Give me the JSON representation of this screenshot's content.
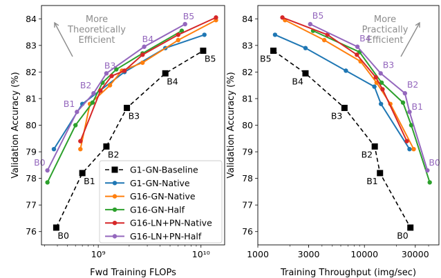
{
  "chart_data": [
    {
      "type": "line",
      "xscale": "log",
      "xlabel": "Fwd Training FLOPs",
      "ylabel": "Validation Accuracy (%)",
      "xlim": [
        280000000,
        17000000000
      ],
      "ylim": [
        75.5,
        84.5
      ],
      "x_ticks": [
        {
          "v": 1000000000,
          "label": "10⁹"
        },
        {
          "v": 10000000000,
          "label": "10¹⁰"
        }
      ],
      "y_ticks": [
        76,
        77,
        78,
        79,
        80,
        81,
        82,
        83,
        84
      ],
      "annotation": {
        "lines": [
          "More",
          "Theoretically",
          "Efficient"
        ],
        "arrow": "up-left"
      },
      "legend": {
        "position": "bottom-right",
        "entries": [
          "G1-GN-Baseline",
          "G1-GN-Native",
          "G16-GN-Native",
          "G16-GN-Half",
          "G16-LN+PN-Native",
          "G16-LN+PN-Half"
        ]
      },
      "series": [
        {
          "name": "G1-GN-Baseline",
          "color": "#000000",
          "style": "dashed-square",
          "x": [
            390000000,
            700000000,
            1200000000,
            1900000000,
            4500000000,
            10500000000
          ],
          "y": [
            76.15,
            78.2,
            79.2,
            80.65,
            81.95,
            82.8
          ],
          "labels": [
            "B0",
            "B1",
            "B2",
            "B3",
            "B4",
            "B5"
          ],
          "label_color": "#000000"
        },
        {
          "name": "G1-GN-Native",
          "color": "#1f77b4",
          "style": "solid",
          "x": [
            370000000,
            700000000,
            1800000000,
            4500000000,
            10800000000
          ],
          "y": [
            79.1,
            80.8,
            82.0,
            82.9,
            83.4
          ]
        },
        {
          "name": "G16-GN-Native",
          "color": "#ff7f0e",
          "style": "solid",
          "x": [
            670000000,
            830000000,
            1300000000,
            1700000000,
            2700000000,
            6000000000,
            14000000000
          ],
          "y": [
            79.1,
            80.8,
            81.5,
            82.05,
            82.35,
            83.2,
            83.95
          ]
        },
        {
          "name": "G16-GN-Half",
          "color": "#2ca02c",
          "style": "solid",
          "x": [
            320000000,
            600000000,
            880000000,
            1100000000,
            1500000000,
            2700000000,
            6500000000
          ],
          "y": [
            77.85,
            80.0,
            80.85,
            81.6,
            82.1,
            82.7,
            83.55
          ]
        },
        {
          "name": "G16-LN+PN-Native",
          "color": "#d62728",
          "style": "solid",
          "x": [
            670000000,
            1050000000,
            1350000000,
            1800000000,
            2700000000,
            6000000000,
            14000000000
          ],
          "y": [
            79.4,
            81.3,
            81.85,
            82.05,
            82.65,
            83.4,
            84.05
          ]
        },
        {
          "name": "G16-LN+PN-Half",
          "color": "#9467bd",
          "style": "solid",
          "x": [
            320000000,
            620000000,
            900000000,
            1200000000,
            2800000000,
            7000000000
          ],
          "y": [
            78.3,
            80.5,
            81.2,
            81.95,
            82.95,
            83.8
          ],
          "labels": [
            "B0",
            "B1",
            "B2",
            "B3",
            "B4",
            "B5"
          ],
          "label_color": "#9467bd"
        }
      ]
    },
    {
      "type": "line",
      "xscale": "log",
      "xlabel": "Training Throughput (img/sec)",
      "ylabel": "Validation Accuracy (%)",
      "xlim": [
        1000,
        50000
      ],
      "ylim": [
        75.5,
        84.5
      ],
      "x_ticks": [
        {
          "v": 1000,
          "label": "1000"
        },
        {
          "v": 3000,
          "label": "3000"
        },
        {
          "v": 10000,
          "label": "10000"
        },
        {
          "v": 30000,
          "label": "30000"
        }
      ],
      "y_ticks": [
        76,
        77,
        78,
        79,
        80,
        81,
        82,
        83,
        84
      ],
      "annotation": {
        "lines": [
          "More",
          "Practically",
          "Efficient"
        ],
        "arrow": "up-right"
      },
      "series": [
        {
          "name": "G1-GN-Baseline",
          "color": "#000000",
          "style": "dashed-square",
          "x": [
            1400,
            2800,
            6500,
            12500,
            14000,
            27000
          ],
          "y": [
            82.8,
            81.95,
            80.65,
            79.2,
            78.2,
            76.15
          ],
          "labels": [
            "B5",
            "B4",
            "B3",
            "B2",
            "B1",
            "B0"
          ],
          "label_color": "#000000"
        },
        {
          "name": "G1-GN-Native",
          "color": "#1f77b4",
          "style": "solid",
          "x": [
            1450,
            2800,
            6700,
            12400,
            14300,
            26500
          ],
          "y": [
            83.4,
            82.9,
            82.05,
            81.45,
            80.8,
            79.1
          ]
        },
        {
          "name": "G16-GN-Native",
          "color": "#ff7f0e",
          "style": "solid",
          "x": [
            1800,
            4200,
            9200,
            13000,
            17500,
            29000
          ],
          "y": [
            83.95,
            83.2,
            82.4,
            81.6,
            80.8,
            79.1
          ]
        },
        {
          "name": "G16-GN-Half",
          "color": "#2ca02c",
          "style": "solid",
          "x": [
            3300,
            9000,
            14500,
            23000,
            27500,
            41000
          ],
          "y": [
            83.55,
            82.75,
            81.6,
            80.85,
            80.0,
            77.85
          ]
        },
        {
          "name": "G16-LN+PN-Native",
          "color": "#d62728",
          "style": "solid",
          "x": [
            1700,
            4500,
            8500,
            12800,
            14800,
            25000
          ],
          "y": [
            84.05,
            83.4,
            82.65,
            81.8,
            81.35,
            79.4
          ]
        },
        {
          "name": "G16-LN+PN-Half",
          "color": "#9467bd",
          "style": "solid",
          "x": [
            3100,
            8600,
            14200,
            24000,
            26500,
            39000
          ],
          "y": [
            83.8,
            82.95,
            81.95,
            81.2,
            80.5,
            78.3
          ],
          "labels": [
            "B5",
            "B4",
            "B3",
            "B2",
            "B1",
            "B0"
          ],
          "label_color": "#9467bd"
        }
      ]
    }
  ]
}
